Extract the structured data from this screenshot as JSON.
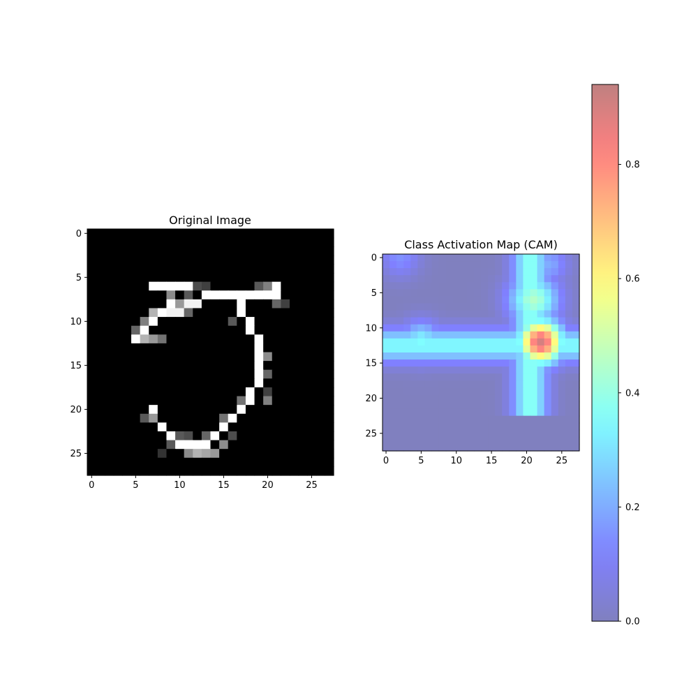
{
  "chart_data": [
    {
      "type": "heatmap",
      "title": "Original Image",
      "colormap": "gray",
      "alpha": 1.0,
      "shape": [
        28,
        28
      ],
      "x_ticks": [
        0,
        5,
        10,
        15,
        20,
        25
      ],
      "y_ticks": [
        0,
        5,
        10,
        15,
        20,
        25
      ],
      "strokes": [
        {
          "points": [
            [
              7,
              6
            ],
            [
              8,
              6
            ],
            [
              9,
              6
            ],
            [
              10,
              6
            ],
            [
              11,
              6
            ],
            [
              12,
              6
            ],
            [
              13,
              7
            ],
            [
              14,
              7
            ],
            [
              15,
              7
            ],
            [
              16,
              7
            ],
            [
              17,
              7
            ],
            [
              18,
              7
            ],
            [
              19,
              7
            ],
            [
              20,
              7
            ],
            [
              21,
              7
            ],
            [
              21,
              6
            ]
          ],
          "intensity": 1.0
        },
        {
          "points": [
            [
              9,
              7
            ],
            [
              9,
              8
            ],
            [
              8,
              9
            ],
            [
              7,
              10
            ],
            [
              6,
              11
            ],
            [
              5,
              12
            ]
          ],
          "intensity": 1.0
        },
        {
          "points": [
            [
              8,
              9
            ],
            [
              9,
              9
            ],
            [
              10,
              9
            ],
            [
              11,
              8
            ],
            [
              12,
              8
            ]
          ],
          "intensity": 0.95
        },
        {
          "points": [
            [
              17,
              8
            ],
            [
              17,
              9
            ],
            [
              18,
              10
            ],
            [
              18,
              11
            ],
            [
              19,
              12
            ],
            [
              19,
              13
            ],
            [
              19,
              14
            ],
            [
              19,
              15
            ],
            [
              19,
              16
            ],
            [
              19,
              17
            ],
            [
              18,
              18
            ],
            [
              18,
              19
            ],
            [
              17,
              20
            ],
            [
              16,
              21
            ],
            [
              15,
              22
            ],
            [
              14,
              23
            ],
            [
              13,
              24
            ],
            [
              12,
              24
            ],
            [
              11,
              24
            ],
            [
              10,
              24
            ],
            [
              9,
              23
            ],
            [
              8,
              22
            ],
            [
              7,
              21
            ],
            [
              7,
              20
            ]
          ],
          "intensity": 1.0
        }
      ],
      "grey_cells": [
        [
          9,
          7,
          0.55
        ],
        [
          11,
          7,
          0.35
        ],
        [
          12,
          6,
          0.3
        ],
        [
          13,
          6,
          0.25
        ],
        [
          19,
          6,
          0.35
        ],
        [
          20,
          6,
          0.5
        ],
        [
          10,
          8,
          0.6
        ],
        [
          7,
          9,
          0.7
        ],
        [
          11,
          9,
          0.4
        ],
        [
          6,
          10,
          0.5
        ],
        [
          5,
          11,
          0.4
        ],
        [
          6,
          12,
          0.7
        ],
        [
          7,
          12,
          0.6
        ],
        [
          8,
          12,
          0.45
        ],
        [
          16,
          10,
          0.35
        ],
        [
          20,
          14,
          0.55
        ],
        [
          20,
          16,
          0.4
        ],
        [
          17,
          19,
          0.45
        ],
        [
          15,
          21,
          0.45
        ],
        [
          13,
          23,
          0.4
        ],
        [
          11,
          23,
          0.3
        ],
        [
          10,
          23,
          0.35
        ],
        [
          12,
          25,
          0.7
        ],
        [
          13,
          25,
          0.65
        ],
        [
          11,
          25,
          0.55
        ],
        [
          14,
          25,
          0.6
        ],
        [
          15,
          24,
          0.55
        ],
        [
          8,
          25,
          0.2
        ],
        [
          9,
          24,
          0.35
        ],
        [
          6,
          21,
          0.35
        ],
        [
          7,
          21,
          0.6
        ],
        [
          16,
          23,
          0.3
        ],
        [
          21,
          8,
          0.4
        ],
        [
          22,
          8,
          0.25
        ],
        [
          20,
          18,
          0.25
        ],
        [
          20,
          19,
          0.5
        ]
      ]
    },
    {
      "type": "heatmap",
      "title": "Class Activation Map (CAM)",
      "colormap": "jet",
      "alpha": 0.5,
      "shape": [
        28,
        28
      ],
      "x_ticks": [
        0,
        5,
        10,
        15,
        20,
        25
      ],
      "y_ticks": [
        0,
        5,
        10,
        15,
        20,
        25
      ],
      "activation_peaks": [
        {
          "x": 22,
          "y": 12,
          "amplitude": 0.9,
          "sigma": 2.2
        },
        {
          "x": 21,
          "y": 6,
          "amplitude": 0.45,
          "sigma": 2.5
        },
        {
          "x": 5,
          "y": 12,
          "amplitude": 0.35,
          "sigma": 2.0
        },
        {
          "x": 23,
          "y": 1,
          "amplitude": 0.2,
          "sigma": 2.0
        },
        {
          "x": 2,
          "y": 0,
          "amplitude": 0.15,
          "sigma": 2.0
        }
      ],
      "activation_bands": [
        {
          "orientation": "horizontal",
          "center": 12.5,
          "from": 0,
          "to": 27,
          "amplitude": 0.35,
          "width": 1.7
        },
        {
          "orientation": "vertical",
          "center": 20.5,
          "from": 0,
          "to": 22,
          "amplitude": 0.38,
          "width": 1.8
        }
      ],
      "colorbar": {
        "range": [
          0.0,
          0.94
        ],
        "ticks": [
          "0.0",
          "0.2",
          "0.4",
          "0.6",
          "0.8"
        ]
      }
    }
  ]
}
